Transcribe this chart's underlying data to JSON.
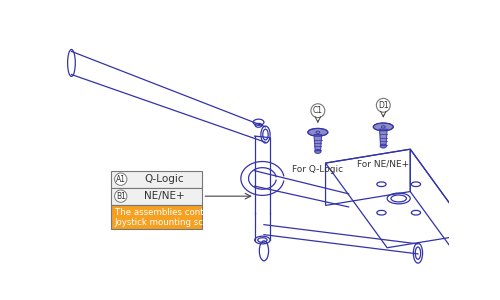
{
  "bg_color": "#ffffff",
  "line_color": "#3333aa",
  "screw_fill": "#7777bb",
  "orange_color": "#f5a020",
  "table_border": "#777777",
  "arrow_color": "#444444",
  "label_fontsize": 7,
  "small_fontsize": 6,
  "table_note": "The assemblies contain the\nJoystick mounting screws.",
  "c1_label": "C1",
  "d1_label": "D1",
  "c1_caption": "For Q-Logic",
  "d1_caption": "For NE/NE+",
  "a1_text": "Q-Logic",
  "b1_text": "NE/NE+"
}
